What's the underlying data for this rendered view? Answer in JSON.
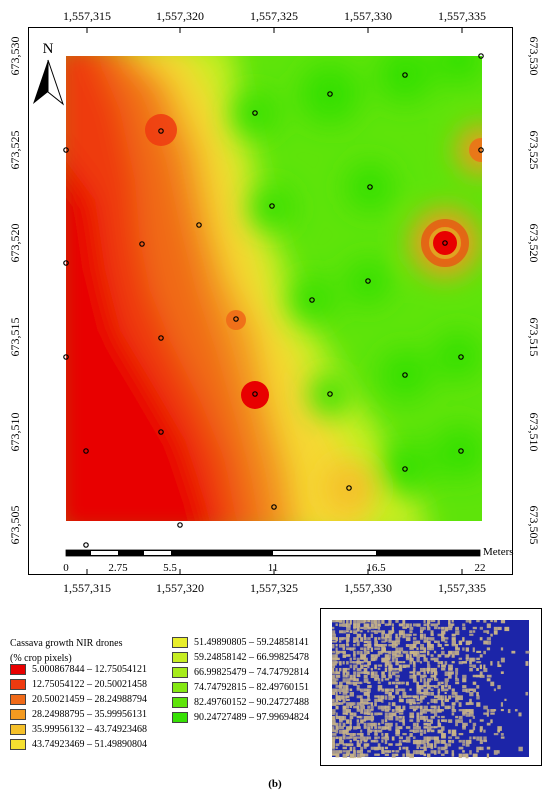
{
  "figure": {
    "caption": "(b)"
  },
  "map": {
    "north_label": "N",
    "x_ticks": [
      "1,557,315",
      "1,557,320",
      "1,557,325",
      "1,557,330",
      "1,557,335"
    ],
    "y_ticks": [
      "673,530",
      "673,525",
      "673,520",
      "673,515",
      "673,510",
      "673,505"
    ],
    "scale_bar": {
      "unit": "Meters",
      "labels": [
        "0",
        "2.75",
        "5.5",
        "11",
        "16.5",
        "22"
      ]
    },
    "sample_point_count": 30
  },
  "legend": {
    "title": "Cassava growth NIR drones\n(% crop pixels)",
    "classes": [
      {
        "range": "5.000867844 – 12.75054121",
        "color": "#e80000"
      },
      {
        "range": "12.75054122 – 20.50021458",
        "color": "#ee3a10"
      },
      {
        "range": "20.50021459 – 28.24988794",
        "color": "#f06a18"
      },
      {
        "range": "28.24988795 – 35.99956131",
        "color": "#f39a20"
      },
      {
        "range": "35.99956132 – 43.74923468",
        "color": "#f5c02a"
      },
      {
        "range": "43.74923469 – 51.49890804",
        "color": "#f5e030"
      },
      {
        "range": "51.49890805 – 59.24858141",
        "color": "#e8ee2a"
      },
      {
        "range": "59.24858142 – 66.99825478",
        "color": "#c6ee22"
      },
      {
        "range": "66.99825479 – 74.74792814",
        "color": "#a6ec1a"
      },
      {
        "range": "74.74792815 – 82.49760151",
        "color": "#84e812"
      },
      {
        "range": "82.49760152 – 90.24727488",
        "color": "#5ee40a"
      },
      {
        "range": "90.24727489 – 97.99694824",
        "color": "#36e004"
      }
    ]
  },
  "inset": {
    "description_colors": {
      "soil": "#c8b488",
      "crop": "#1c25a8"
    }
  }
}
